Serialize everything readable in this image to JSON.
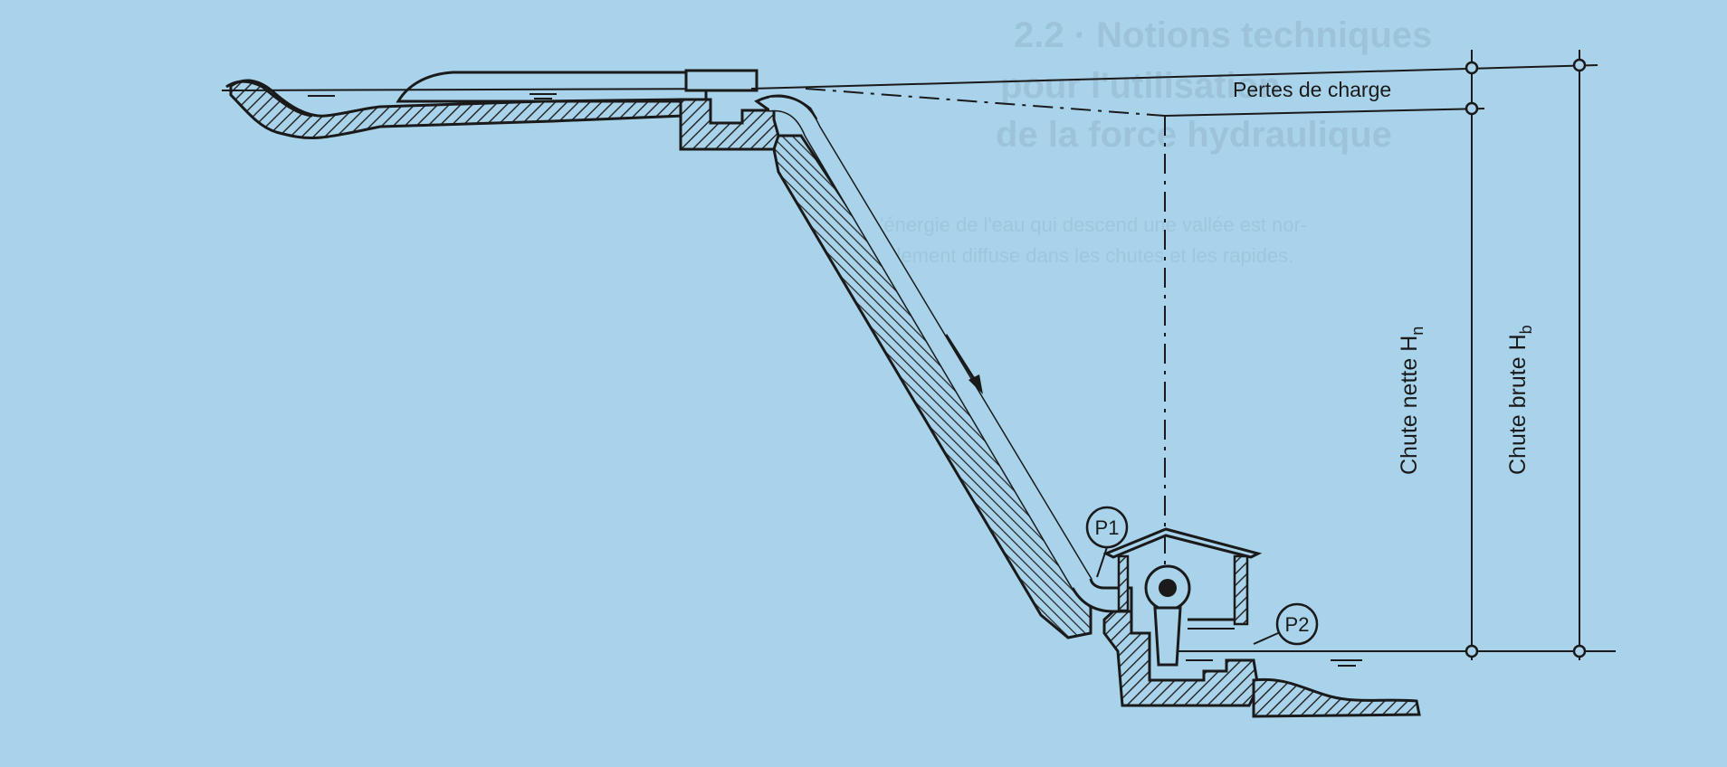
{
  "labels": {
    "losses": "Pertes de charge",
    "net_head": "Chute nette H",
    "net_head_sub": "n",
    "gross_head": "Chute brute H",
    "gross_head_sub": "b",
    "p1": "P1",
    "p2": "P2"
  },
  "show_through": {
    "heading_lines": [
      "2.2 · Notions techniques",
      "pour l'utilisation",
      "de la force hydraulique"
    ],
    "body_lines": [
      "L'énergie de l'eau qui descend une vallée est nor-",
      "malement diffuse dans les chutes et les rapides."
    ]
  },
  "colors": {
    "background": "#a9d3ea",
    "ink": "#1a1a1a",
    "hatch": "#2a2a2a"
  }
}
